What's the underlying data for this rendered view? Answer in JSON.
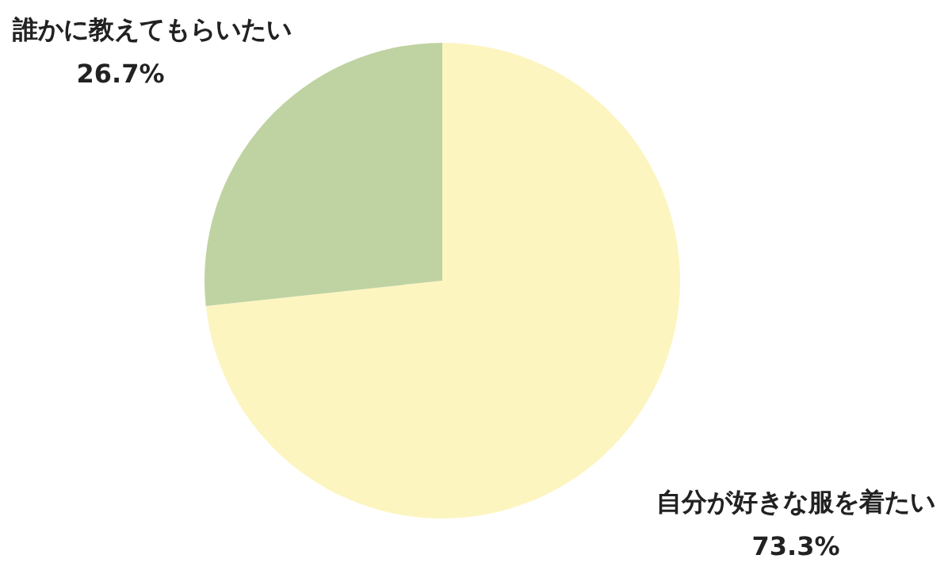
{
  "chart_data": {
    "type": "pie",
    "categories": [
      "自分が好きな服を着たい",
      "誰かに教えてもらいたい"
    ],
    "values": [
      73.3,
      26.7
    ],
    "colors": [
      "#fdf5c0",
      "#bfd3a2"
    ],
    "value_labels": [
      "73.3%",
      "26.7%"
    ]
  }
}
